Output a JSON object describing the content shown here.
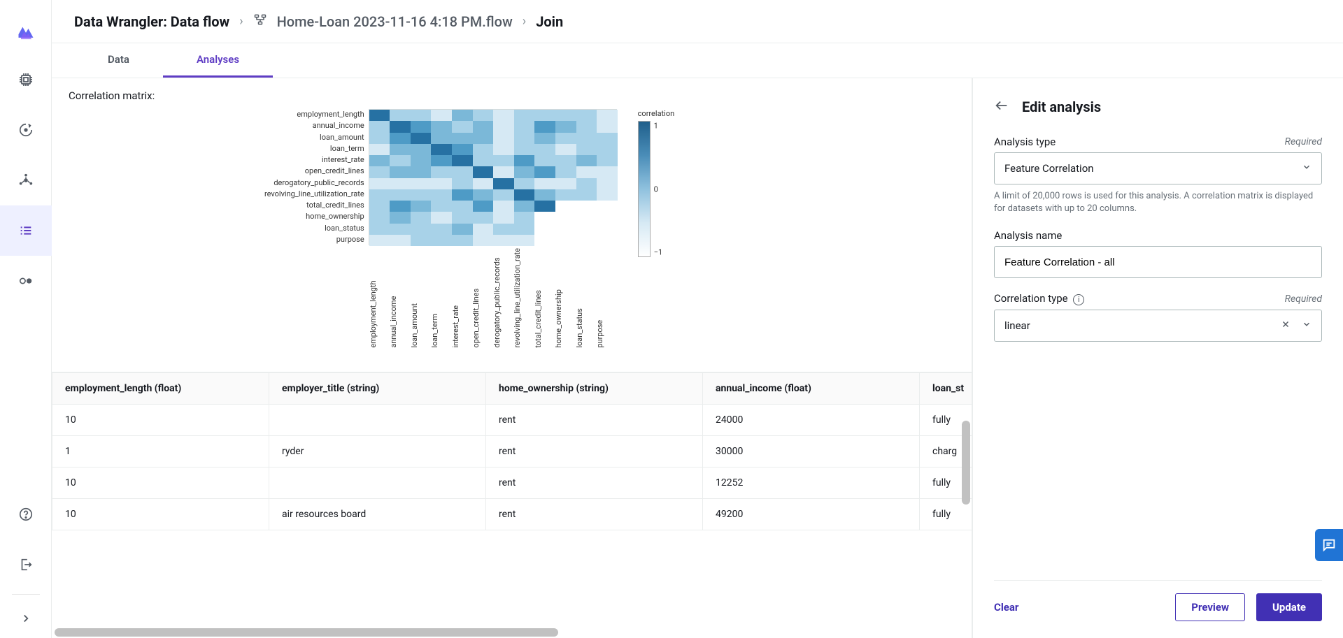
{
  "breadcrumb": {
    "root": "Data Wrangler: Data flow",
    "file": "Home-Loan 2023-11-16 4:18 PM.flow",
    "node": "Join"
  },
  "tabs": {
    "data": "Data",
    "analyses": "Analyses"
  },
  "section_title": "Correlation matrix:",
  "heatmap": {
    "labels": [
      "employment_length",
      "annual_income",
      "loan_amount",
      "loan_term",
      "interest_rate",
      "open_credit_lines",
      "derogatory_public_records",
      "revolving_line_utilization_rate",
      "total_credit_lines",
      "home_ownership",
      "loan_status",
      "purpose"
    ],
    "colorbar": {
      "title": "correlation",
      "min": -1,
      "mid": 0,
      "max": 1
    },
    "palette": {
      "high": "#2671a3",
      "midhigh": "#4e9bc6",
      "mid": "#7bb8d8",
      "midlow": "#a8d2e8",
      "low": "#d6e9f4",
      "blank": "#ffffff"
    },
    "values": [
      [
        1.0,
        0.2,
        0.18,
        0.1,
        0.3,
        0.22,
        0.12,
        0.25,
        0.28,
        0.18,
        0.15,
        0.1
      ],
      [
        0.2,
        1.0,
        0.65,
        0.3,
        0.22,
        0.4,
        0.1,
        0.18,
        0.55,
        0.3,
        0.2,
        0.12
      ],
      [
        0.18,
        0.65,
        1.0,
        0.5,
        0.35,
        0.3,
        0.08,
        0.2,
        0.48,
        0.22,
        0.18,
        0.15
      ],
      [
        0.1,
        0.3,
        0.5,
        1.0,
        0.55,
        0.15,
        0.05,
        0.25,
        0.2,
        0.12,
        0.22,
        0.18
      ],
      [
        0.3,
        0.22,
        0.35,
        0.55,
        1.0,
        0.18,
        0.28,
        0.6,
        0.25,
        0.15,
        0.35,
        0.2
      ],
      [
        0.22,
        0.4,
        0.3,
        0.15,
        0.18,
        1.0,
        0.1,
        0.3,
        0.78,
        0.2,
        0.12,
        0.1
      ],
      [
        0.12,
        0.1,
        0.08,
        0.05,
        0.28,
        0.1,
        1.0,
        0.22,
        0.12,
        0.08,
        0.18,
        0.06
      ],
      [
        0.25,
        0.18,
        0.2,
        0.25,
        0.6,
        0.3,
        0.22,
        1.0,
        0.32,
        0.18,
        0.28,
        0.14
      ],
      [
        0.28,
        0.55,
        0.48,
        0.2,
        0.25,
        0.78,
        0.12,
        0.32,
        1.0,
        null,
        null,
        null
      ],
      [
        0.18,
        0.3,
        0.22,
        0.12,
        0.15,
        0.2,
        0.08,
        0.18,
        null,
        null,
        null,
        null
      ],
      [
        0.15,
        0.2,
        0.18,
        0.22,
        0.35,
        0.12,
        0.18,
        0.28,
        null,
        null,
        null,
        null
      ],
      [
        0.1,
        0.12,
        0.15,
        0.18,
        0.2,
        0.1,
        0.06,
        0.14,
        null,
        null,
        null,
        null
      ]
    ]
  },
  "table": {
    "columns": [
      "employment_length (float)",
      "employer_title (string)",
      "home_ownership (string)",
      "annual_income (float)",
      "loan_st"
    ],
    "rows": [
      [
        "10",
        "",
        "rent",
        "24000",
        "fully"
      ],
      [
        "1",
        "ryder",
        "rent",
        "30000",
        "charg"
      ],
      [
        "10",
        "",
        "rent",
        "12252",
        "fully"
      ],
      [
        "10",
        "air resources board",
        "rent",
        "49200",
        "fully"
      ]
    ]
  },
  "side": {
    "title": "Edit analysis",
    "analysis_type": {
      "label": "Analysis type",
      "required": "Required",
      "value": "Feature Correlation",
      "help": "A limit of 20,000 rows is used for this analysis. A correlation matrix is displayed for datasets with up to 20 columns."
    },
    "analysis_name": {
      "label": "Analysis name",
      "value": "Feature Correlation - all"
    },
    "correlation_type": {
      "label": "Correlation type",
      "required": "Required",
      "value": "linear"
    },
    "actions": {
      "clear": "Clear",
      "preview": "Preview",
      "update": "Update"
    }
  }
}
